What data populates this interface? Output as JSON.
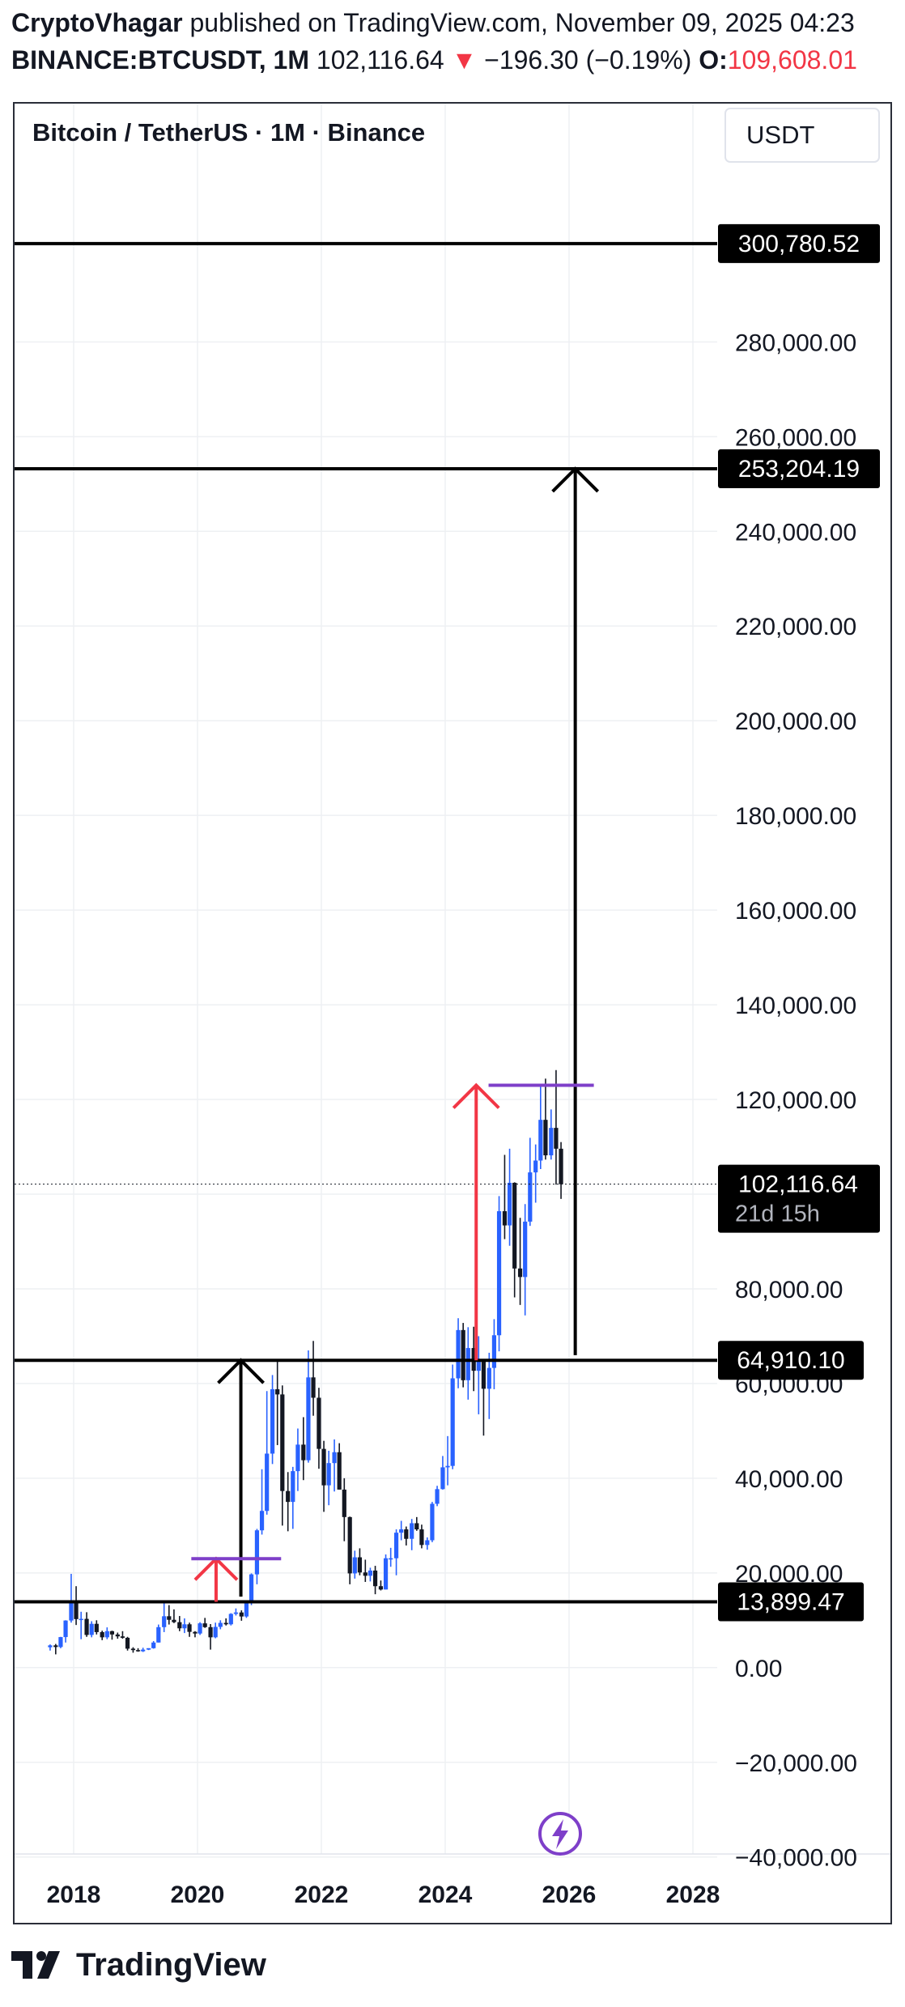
{
  "header": {
    "author": "CryptoVhagar",
    "published": "published on TradingView.com, November 09, 2025 04:23",
    "symbol": "BINANCE:BTCUSDT, 1M",
    "last": "102,116.64",
    "arrow": "▼",
    "change": "−196.30 (−0.19%)",
    "open_label": "O:",
    "open_value": "109,608.01"
  },
  "footer": {
    "brand": "TradingView",
    "logo_icon": "tradingview-logo-icon"
  },
  "colors": {
    "bull": "#2962ff",
    "bear": "#131722",
    "red_arrow": "#f23645",
    "purple": "#7e3fc9",
    "line": "#000000",
    "label_bg": "#000000",
    "grid": "#eef0f3"
  },
  "chart_data": {
    "type": "candlestick",
    "title": "Bitcoin / TetherUS · 1M · Binance",
    "currency": "USDT",
    "y_ticks": [
      "300,780.52",
      "280,000.00",
      "260,000.00",
      "253,204.19",
      "240,000.00",
      "220,000.00",
      "200,000.00",
      "180,000.00",
      "160,000.00",
      "140,000.00",
      "120,000.00",
      "80,000.00",
      "64,910.10",
      "60,000.00",
      "40,000.00",
      "20,000.00",
      "13,899.47",
      "0.00",
      "−20,000.00",
      "−40,000.00"
    ],
    "y_tick_values": [
      280000,
      260000,
      240000,
      220000,
      200000,
      180000,
      160000,
      140000,
      120000,
      100000,
      80000,
      60000,
      40000,
      20000,
      0,
      -20000,
      -40000
    ],
    "x_ticks": [
      "2018",
      "2020",
      "2022",
      "2024",
      "2026",
      "2028"
    ],
    "x_tick_values": [
      2018,
      2020,
      2022,
      2024,
      2026,
      2028
    ],
    "ylim": [
      -40000,
      300780.52
    ],
    "grid": true,
    "current_price": {
      "value": 102116.64,
      "label": "102,116.64",
      "countdown": "21d 15h"
    },
    "horizontal_levels": [
      {
        "value": 300780.52,
        "label": "300,780.52"
      },
      {
        "value": 253204.19,
        "label": "253,204.19"
      },
      {
        "value": 64910.1,
        "label": "64,910.10"
      },
      {
        "value": 13899.47,
        "label": "13,899.47"
      }
    ],
    "drawings": {
      "black_arrows": [
        {
          "x": 2020.7,
          "y_from": 15000,
          "y_to": 64910
        },
        {
          "x": 2026.1,
          "y_from": 66000,
          "y_to": 253204
        }
      ],
      "red_arrows": [
        {
          "x": 2020.3,
          "y_from": 13899,
          "y_to": 23000
        },
        {
          "x": 2024.5,
          "y_from": 64910,
          "y_to": 123000
        }
      ],
      "purple_lines": [
        {
          "x_from": 2019.9,
          "x_to": 2021.35,
          "y": 23000
        },
        {
          "x_from": 2024.7,
          "x_to": 2026.4,
          "y": 123000
        }
      ]
    },
    "candles": [
      {
        "t": 2017.62,
        "o": 4300,
        "h": 4900,
        "l": 3600,
        "c": 4700
      },
      {
        "t": 2017.71,
        "o": 4700,
        "h": 5000,
        "l": 2800,
        "c": 4350
      },
      {
        "t": 2017.79,
        "o": 4350,
        "h": 6500,
        "l": 4100,
        "c": 6450
      },
      {
        "t": 2017.87,
        "o": 6450,
        "h": 10000,
        "l": 5300,
        "c": 9950
      },
      {
        "t": 2017.96,
        "o": 9950,
        "h": 19800,
        "l": 9500,
        "c": 13800
      },
      {
        "t": 2018.04,
        "o": 13800,
        "h": 17200,
        "l": 9000,
        "c": 10250
      },
      {
        "t": 2018.12,
        "o": 10250,
        "h": 11800,
        "l": 6000,
        "c": 10300
      },
      {
        "t": 2018.21,
        "o": 10300,
        "h": 11700,
        "l": 6500,
        "c": 6900
      },
      {
        "t": 2018.29,
        "o": 6900,
        "h": 9800,
        "l": 6400,
        "c": 9250
      },
      {
        "t": 2018.37,
        "o": 9250,
        "h": 10000,
        "l": 7000,
        "c": 7500
      },
      {
        "t": 2018.46,
        "o": 7500,
        "h": 7800,
        "l": 5800,
        "c": 6400
      },
      {
        "t": 2018.54,
        "o": 6400,
        "h": 8500,
        "l": 6000,
        "c": 7700
      },
      {
        "t": 2018.62,
        "o": 7700,
        "h": 7800,
        "l": 5900,
        "c": 7000
      },
      {
        "t": 2018.71,
        "o": 7000,
        "h": 7400,
        "l": 6100,
        "c": 6600
      },
      {
        "t": 2018.79,
        "o": 6600,
        "h": 7700,
        "l": 6100,
        "c": 6300
      },
      {
        "t": 2018.87,
        "o": 6300,
        "h": 6500,
        "l": 3600,
        "c": 4000
      },
      {
        "t": 2018.96,
        "o": 4000,
        "h": 4300,
        "l": 3150,
        "c": 3700
      },
      {
        "t": 2019.04,
        "o": 3700,
        "h": 4100,
        "l": 3350,
        "c": 3450
      },
      {
        "t": 2019.12,
        "o": 3450,
        "h": 4200,
        "l": 3300,
        "c": 3800
      },
      {
        "t": 2019.21,
        "o": 3800,
        "h": 4100,
        "l": 3700,
        "c": 4100
      },
      {
        "t": 2019.29,
        "o": 4100,
        "h": 5600,
        "l": 4000,
        "c": 5300
      },
      {
        "t": 2019.37,
        "o": 5300,
        "h": 9100,
        "l": 5300,
        "c": 8550
      },
      {
        "t": 2019.46,
        "o": 8550,
        "h": 13900,
        "l": 7500,
        "c": 10850
      },
      {
        "t": 2019.54,
        "o": 10850,
        "h": 13200,
        "l": 9100,
        "c": 10100
      },
      {
        "t": 2019.62,
        "o": 10100,
        "h": 12300,
        "l": 9400,
        "c": 9600
      },
      {
        "t": 2019.71,
        "o": 9600,
        "h": 10900,
        "l": 7700,
        "c": 8300
      },
      {
        "t": 2019.79,
        "o": 8300,
        "h": 10400,
        "l": 7300,
        "c": 9150
      },
      {
        "t": 2019.87,
        "o": 9150,
        "h": 9500,
        "l": 6500,
        "c": 7550
      },
      {
        "t": 2019.96,
        "o": 7550,
        "h": 7700,
        "l": 6400,
        "c": 7200
      },
      {
        "t": 2020.04,
        "o": 7200,
        "h": 9600,
        "l": 6900,
        "c": 9350
      },
      {
        "t": 2020.12,
        "o": 9350,
        "h": 10500,
        "l": 8400,
        "c": 8550
      },
      {
        "t": 2020.21,
        "o": 8550,
        "h": 9200,
        "l": 3800,
        "c": 6400
      },
      {
        "t": 2020.29,
        "o": 6400,
        "h": 9500,
        "l": 6200,
        "c": 8600
      },
      {
        "t": 2020.37,
        "o": 8600,
        "h": 10000,
        "l": 8100,
        "c": 9450
      },
      {
        "t": 2020.46,
        "o": 9450,
        "h": 10400,
        "l": 8900,
        "c": 9150
      },
      {
        "t": 2020.54,
        "o": 9150,
        "h": 11500,
        "l": 8900,
        "c": 11350
      },
      {
        "t": 2020.62,
        "o": 11350,
        "h": 12500,
        "l": 11000,
        "c": 11650
      },
      {
        "t": 2020.71,
        "o": 11650,
        "h": 12100,
        "l": 9900,
        "c": 10800
      },
      {
        "t": 2020.79,
        "o": 10800,
        "h": 14100,
        "l": 10500,
        "c": 13800
      },
      {
        "t": 2020.87,
        "o": 13800,
        "h": 19900,
        "l": 13200,
        "c": 19700
      },
      {
        "t": 2020.96,
        "o": 19700,
        "h": 29300,
        "l": 17600,
        "c": 29000
      },
      {
        "t": 2021.04,
        "o": 29000,
        "h": 41900,
        "l": 28100,
        "c": 33100
      },
      {
        "t": 2021.12,
        "o": 33100,
        "h": 58400,
        "l": 32300,
        "c": 45200
      },
      {
        "t": 2021.21,
        "o": 45200,
        "h": 61800,
        "l": 43000,
        "c": 58800
      },
      {
        "t": 2021.29,
        "o": 58800,
        "h": 64900,
        "l": 47000,
        "c": 57700
      },
      {
        "t": 2021.37,
        "o": 57700,
        "h": 59600,
        "l": 30000,
        "c": 37300
      },
      {
        "t": 2021.46,
        "o": 37300,
        "h": 41300,
        "l": 28800,
        "c": 35000
      },
      {
        "t": 2021.54,
        "o": 35000,
        "h": 42400,
        "l": 29300,
        "c": 41500
      },
      {
        "t": 2021.62,
        "o": 41500,
        "h": 50500,
        "l": 37300,
        "c": 47100
      },
      {
        "t": 2021.71,
        "o": 47100,
        "h": 52900,
        "l": 39600,
        "c": 43800
      },
      {
        "t": 2021.79,
        "o": 43800,
        "h": 67000,
        "l": 43300,
        "c": 61300
      },
      {
        "t": 2021.87,
        "o": 61300,
        "h": 69000,
        "l": 53200,
        "c": 57000
      },
      {
        "t": 2021.96,
        "o": 57000,
        "h": 59100,
        "l": 42000,
        "c": 46200
      },
      {
        "t": 2022.04,
        "o": 46200,
        "h": 47900,
        "l": 32900,
        "c": 38500
      },
      {
        "t": 2022.12,
        "o": 38500,
        "h": 45800,
        "l": 34300,
        "c": 43200
      },
      {
        "t": 2022.21,
        "o": 43200,
        "h": 48200,
        "l": 37200,
        "c": 45500
      },
      {
        "t": 2022.29,
        "o": 45500,
        "h": 47400,
        "l": 37600,
        "c": 37600
      },
      {
        "t": 2022.37,
        "o": 37600,
        "h": 40000,
        "l": 26700,
        "c": 31800
      },
      {
        "t": 2022.46,
        "o": 31800,
        "h": 31900,
        "l": 17600,
        "c": 19900
      },
      {
        "t": 2022.54,
        "o": 19900,
        "h": 24700,
        "l": 18800,
        "c": 23300
      },
      {
        "t": 2022.62,
        "o": 23300,
        "h": 25200,
        "l": 19500,
        "c": 20100
      },
      {
        "t": 2022.71,
        "o": 20100,
        "h": 22800,
        "l": 18100,
        "c": 19400
      },
      {
        "t": 2022.79,
        "o": 19400,
        "h": 21100,
        "l": 18200,
        "c": 20500
      },
      {
        "t": 2022.87,
        "o": 20500,
        "h": 21500,
        "l": 15500,
        "c": 17200
      },
      {
        "t": 2022.96,
        "o": 17200,
        "h": 18400,
        "l": 16300,
        "c": 16500
      },
      {
        "t": 2023.04,
        "o": 16500,
        "h": 23900,
        "l": 16500,
        "c": 23100
      },
      {
        "t": 2023.12,
        "o": 23100,
        "h": 25300,
        "l": 21300,
        "c": 23100
      },
      {
        "t": 2023.21,
        "o": 23100,
        "h": 29200,
        "l": 19500,
        "c": 28500
      },
      {
        "t": 2023.29,
        "o": 28500,
        "h": 31000,
        "l": 26900,
        "c": 29200
      },
      {
        "t": 2023.37,
        "o": 29200,
        "h": 29800,
        "l": 25800,
        "c": 27200
      },
      {
        "t": 2023.46,
        "o": 27200,
        "h": 31400,
        "l": 24800,
        "c": 30500
      },
      {
        "t": 2023.54,
        "o": 30500,
        "h": 31800,
        "l": 28900,
        "c": 29200
      },
      {
        "t": 2023.62,
        "o": 29200,
        "h": 30200,
        "l": 25200,
        "c": 25900
      },
      {
        "t": 2023.71,
        "o": 25900,
        "h": 27500,
        "l": 24900,
        "c": 26900
      },
      {
        "t": 2023.79,
        "o": 26900,
        "h": 35000,
        "l": 26500,
        "c": 34600
      },
      {
        "t": 2023.87,
        "o": 34600,
        "h": 38400,
        "l": 34100,
        "c": 37700
      },
      {
        "t": 2023.96,
        "o": 37700,
        "h": 44700,
        "l": 37600,
        "c": 42300
      },
      {
        "t": 2024.04,
        "o": 42300,
        "h": 48900,
        "l": 38500,
        "c": 42600
      },
      {
        "t": 2024.12,
        "o": 42600,
        "h": 64000,
        "l": 41900,
        "c": 61100
      },
      {
        "t": 2024.21,
        "o": 61100,
        "h": 73800,
        "l": 59000,
        "c": 71300
      },
      {
        "t": 2024.29,
        "o": 71300,
        "h": 72800,
        "l": 59200,
        "c": 60700
      },
      {
        "t": 2024.37,
        "o": 60700,
        "h": 71900,
        "l": 56600,
        "c": 67500
      },
      {
        "t": 2024.46,
        "o": 67500,
        "h": 72000,
        "l": 58400,
        "c": 62700
      },
      {
        "t": 2024.54,
        "o": 62700,
        "h": 70000,
        "l": 53500,
        "c": 64600
      },
      {
        "t": 2024.62,
        "o": 64600,
        "h": 65100,
        "l": 49000,
        "c": 58900
      },
      {
        "t": 2024.71,
        "o": 58900,
        "h": 66500,
        "l": 52500,
        "c": 63300
      },
      {
        "t": 2024.79,
        "o": 63300,
        "h": 73600,
        "l": 58800,
        "c": 70200
      },
      {
        "t": 2024.87,
        "o": 70200,
        "h": 99600,
        "l": 66800,
        "c": 96400
      },
      {
        "t": 2024.96,
        "o": 96400,
        "h": 108300,
        "l": 90500,
        "c": 93400
      },
      {
        "t": 2025.04,
        "o": 93400,
        "h": 109600,
        "l": 89100,
        "c": 102400
      },
      {
        "t": 2025.12,
        "o": 102400,
        "h": 102500,
        "l": 78200,
        "c": 84300
      },
      {
        "t": 2025.21,
        "o": 84300,
        "h": 95000,
        "l": 76600,
        "c": 82500
      },
      {
        "t": 2025.29,
        "o": 82500,
        "h": 97900,
        "l": 74400,
        "c": 94200
      },
      {
        "t": 2025.37,
        "o": 94200,
        "h": 111900,
        "l": 93300,
        "c": 104600
      },
      {
        "t": 2025.46,
        "o": 104600,
        "h": 110500,
        "l": 98200,
        "c": 107100
      },
      {
        "t": 2025.54,
        "o": 107100,
        "h": 123200,
        "l": 105300,
        "c": 115700
      },
      {
        "t": 2025.62,
        "o": 115700,
        "h": 124400,
        "l": 107300,
        "c": 108200
      },
      {
        "t": 2025.71,
        "o": 108200,
        "h": 117900,
        "l": 107300,
        "c": 114000
      },
      {
        "t": 2025.79,
        "o": 114000,
        "h": 126200,
        "l": 102000,
        "c": 109600
      },
      {
        "t": 2025.87,
        "o": 109600,
        "h": 111000,
        "l": 99000,
        "c": 102100
      }
    ]
  }
}
